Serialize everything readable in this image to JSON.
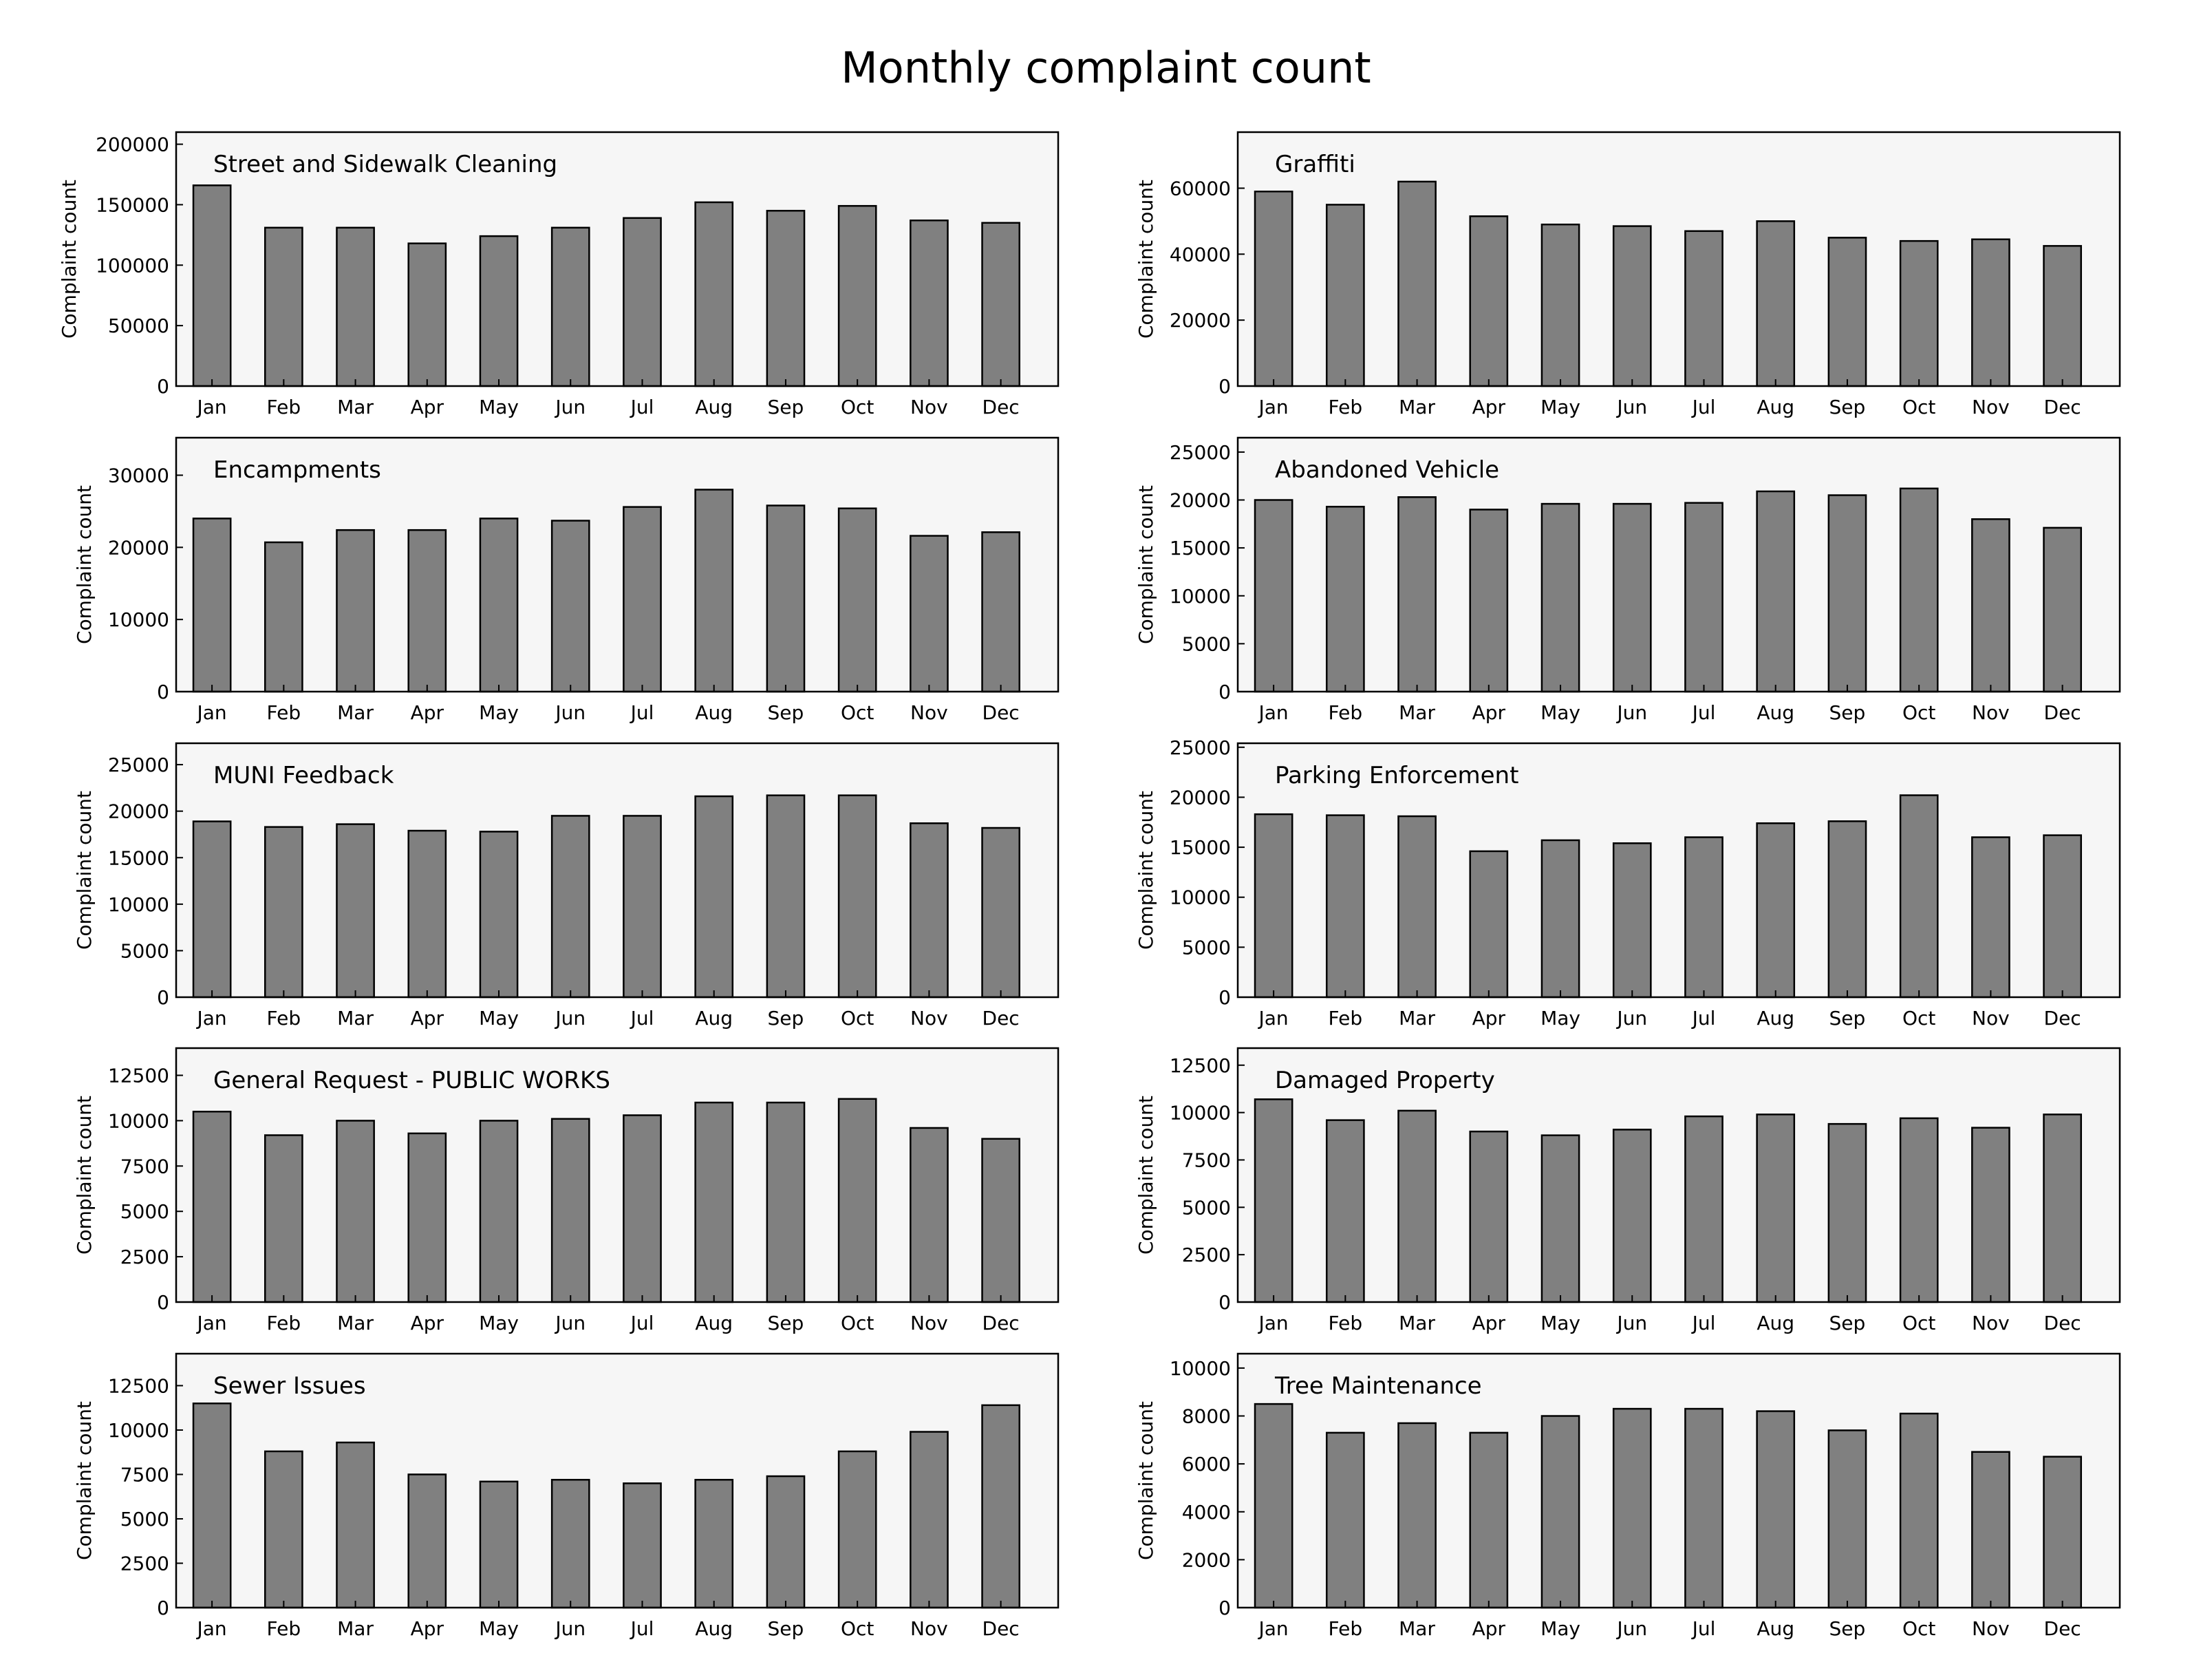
{
  "figure": {
    "title": "Monthly complaint count"
  },
  "colors": {
    "bar_fill": "#808080",
    "bar_edge": "#000000",
    "panel_bg": "#f6f6f6"
  },
  "chart_data": [
    {
      "type": "bar",
      "title": "Street and Sidewalk Cleaning",
      "ylabel": "Complaint count",
      "categories": [
        "Jan",
        "Feb",
        "Mar",
        "Apr",
        "May",
        "Jun",
        "Jul",
        "Aug",
        "Sep",
        "Oct",
        "Nov",
        "Dec"
      ],
      "values": [
        166000,
        131000,
        131000,
        118000,
        124000,
        131000,
        139000,
        152000,
        145000,
        149000,
        137000,
        135000
      ],
      "ylim": [
        0,
        210000
      ],
      "yticks": [
        0,
        50000,
        100000,
        150000,
        200000
      ]
    },
    {
      "type": "bar",
      "title": "Graffiti",
      "ylabel": "Complaint count",
      "categories": [
        "Jan",
        "Feb",
        "Mar",
        "Apr",
        "May",
        "Jun",
        "Jul",
        "Aug",
        "Sep",
        "Oct",
        "Nov",
        "Dec"
      ],
      "values": [
        59000,
        55000,
        62000,
        51500,
        49000,
        48500,
        47000,
        50000,
        45000,
        44000,
        44500,
        42500
      ],
      "ylim": [
        0,
        77000
      ],
      "yticks": [
        0,
        20000,
        40000,
        60000
      ]
    },
    {
      "type": "bar",
      "title": "Encampments",
      "ylabel": "Complaint count",
      "categories": [
        "Jan",
        "Feb",
        "Mar",
        "Apr",
        "May",
        "Jun",
        "Jul",
        "Aug",
        "Sep",
        "Oct",
        "Nov",
        "Dec"
      ],
      "values": [
        24000,
        20700,
        22400,
        22400,
        24000,
        23700,
        25600,
        28000,
        25800,
        25400,
        21600,
        22100
      ],
      "ylim": [
        0,
        35200
      ],
      "yticks": [
        0,
        10000,
        20000,
        30000
      ]
    },
    {
      "type": "bar",
      "title": "Abandoned Vehicle",
      "ylabel": "Complaint count",
      "categories": [
        "Jan",
        "Feb",
        "Mar",
        "Apr",
        "May",
        "Jun",
        "Jul",
        "Aug",
        "Sep",
        "Oct",
        "Nov",
        "Dec"
      ],
      "values": [
        20000,
        19300,
        20300,
        19000,
        19600,
        19600,
        19700,
        20900,
        20500,
        21200,
        18000,
        17100
      ],
      "ylim": [
        0,
        26500
      ],
      "yticks": [
        0,
        5000,
        10000,
        15000,
        20000,
        25000
      ]
    },
    {
      "type": "bar",
      "title": "MUNI Feedback",
      "ylabel": "Complaint count",
      "categories": [
        "Jan",
        "Feb",
        "Mar",
        "Apr",
        "May",
        "Jun",
        "Jul",
        "Aug",
        "Sep",
        "Oct",
        "Nov",
        "Dec"
      ],
      "values": [
        18900,
        18300,
        18600,
        17900,
        17800,
        19500,
        19500,
        21600,
        21700,
        21700,
        18700,
        18200
      ],
      "ylim": [
        0,
        27300
      ],
      "yticks": [
        0,
        5000,
        10000,
        15000,
        20000,
        25000
      ]
    },
    {
      "type": "bar",
      "title": "Parking Enforcement",
      "ylabel": "Complaint count",
      "categories": [
        "Jan",
        "Feb",
        "Mar",
        "Apr",
        "May",
        "Jun",
        "Jul",
        "Aug",
        "Sep",
        "Oct",
        "Nov",
        "Dec"
      ],
      "values": [
        18300,
        18200,
        18100,
        14600,
        15700,
        15400,
        16000,
        17400,
        17600,
        20200,
        16000,
        16200
      ],
      "ylim": [
        0,
        25400
      ],
      "yticks": [
        0,
        5000,
        10000,
        15000,
        20000,
        25000
      ]
    },
    {
      "type": "bar",
      "title": "General Request - PUBLIC WORKS",
      "ylabel": "Complaint count",
      "categories": [
        "Jan",
        "Feb",
        "Mar",
        "Apr",
        "May",
        "Jun",
        "Jul",
        "Aug",
        "Sep",
        "Oct",
        "Nov",
        "Dec"
      ],
      "values": [
        10500,
        9200,
        10000,
        9300,
        10000,
        10100,
        10300,
        11000,
        11000,
        11200,
        9600,
        9000
      ],
      "ylim": [
        0,
        14000
      ],
      "yticks": [
        0,
        2500,
        5000,
        7500,
        10000,
        12500
      ]
    },
    {
      "type": "bar",
      "title": "Damaged Property",
      "ylabel": "Complaint count",
      "categories": [
        "Jan",
        "Feb",
        "Mar",
        "Apr",
        "May",
        "Jun",
        "Jul",
        "Aug",
        "Sep",
        "Oct",
        "Nov",
        "Dec"
      ],
      "values": [
        10700,
        9600,
        10100,
        9000,
        8800,
        9100,
        9800,
        9900,
        9400,
        9700,
        9200,
        9900
      ],
      "ylim": [
        0,
        13400
      ],
      "yticks": [
        0,
        2500,
        5000,
        7500,
        10000,
        12500
      ]
    },
    {
      "type": "bar",
      "title": "Sewer Issues",
      "ylabel": "Complaint count",
      "categories": [
        "Jan",
        "Feb",
        "Mar",
        "Apr",
        "May",
        "Jun",
        "Jul",
        "Aug",
        "Sep",
        "Oct",
        "Nov",
        "Dec"
      ],
      "values": [
        11500,
        8800,
        9300,
        7500,
        7100,
        7200,
        7000,
        7200,
        7400,
        8800,
        9900,
        11400
      ],
      "ylim": [
        0,
        14300
      ],
      "yticks": [
        0,
        2500,
        5000,
        7500,
        10000,
        12500
      ]
    },
    {
      "type": "bar",
      "title": "Tree Maintenance",
      "ylabel": "Complaint count",
      "categories": [
        "Jan",
        "Feb",
        "Mar",
        "Apr",
        "May",
        "Jun",
        "Jul",
        "Aug",
        "Sep",
        "Oct",
        "Nov",
        "Dec"
      ],
      "values": [
        8500,
        7300,
        7700,
        7300,
        8000,
        8300,
        8300,
        8200,
        7400,
        8100,
        6500,
        6300
      ],
      "ylim": [
        0,
        10600
      ],
      "yticks": [
        0,
        2000,
        4000,
        6000,
        8000,
        10000
      ]
    }
  ]
}
